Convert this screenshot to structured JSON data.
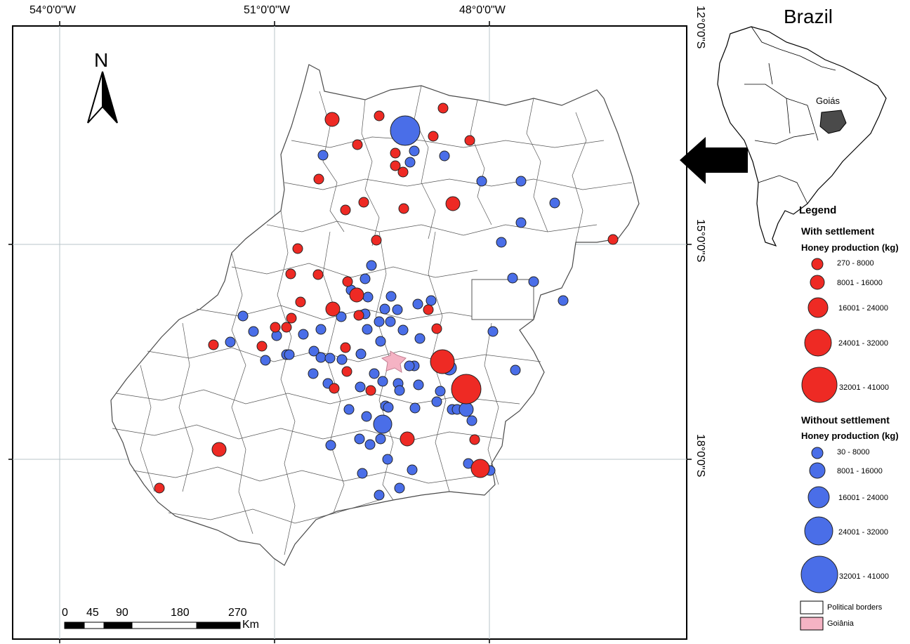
{
  "grid": {
    "lon_labels": [
      "54°0'0\"W",
      "51°0'0\"W",
      "48°0'0\"W"
    ],
    "lat_labels": [
      "12°0'0\"S",
      "15°0'0\"S",
      "18°0'0\"S"
    ]
  },
  "north_arrow": {
    "letter": "N"
  },
  "inset": {
    "title": "Brazil",
    "state_label": "Goiás"
  },
  "legend": {
    "title": "Legend",
    "with_settlement": {
      "heading": "With settlement",
      "subheading": "Honey production (kg)",
      "color": "#ee2a24",
      "classes": [
        "270 - 8000",
        "8001 - 16000",
        "16001 - 24000",
        "24001 - 32000",
        "32001 - 41000"
      ]
    },
    "without_settlement": {
      "heading": "Without settlement",
      "subheading": "Honey production (kg)",
      "color": "#4a6ee8",
      "classes": [
        "30 - 8000",
        "8001 - 16000",
        "16001 - 24000",
        "24001 - 32000",
        "32001 - 41000"
      ]
    },
    "political_borders": "Political borders",
    "goiania": "Goiânia",
    "goiania_color": "#f5b3c4"
  },
  "scale_bar": {
    "ticks": [
      "0",
      "45",
      "90",
      "180",
      "270"
    ],
    "unit": "Km"
  }
}
